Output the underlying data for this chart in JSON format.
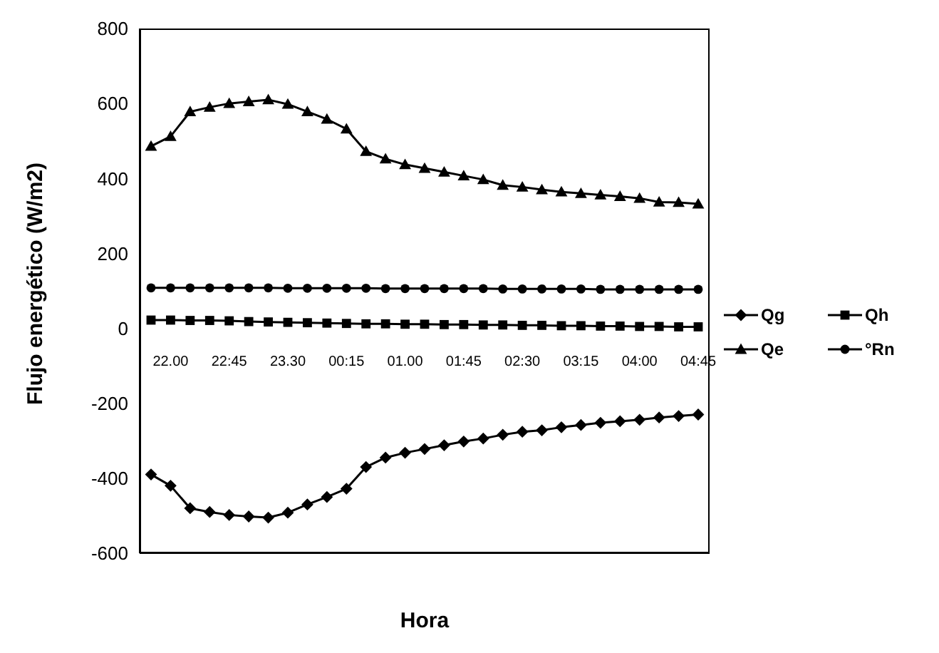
{
  "chart_data": {
    "type": "line",
    "xlabel": "Hora",
    "ylabel": "Flujo energético (W/m2)",
    "categories": [
      null,
      "22.00",
      null,
      null,
      "22:45",
      null,
      null,
      "23.30",
      null,
      null,
      "00:15",
      null,
      null,
      "01.00",
      null,
      null,
      "01:45",
      null,
      null,
      "02:30",
      null,
      null,
      "03:15",
      null,
      null,
      "04:00",
      null,
      null,
      "04:45"
    ],
    "series": [
      {
        "name": "Qg",
        "color": "#000000",
        "marker": "diamond",
        "values": [
          -390,
          -420,
          -480,
          -490,
          -498,
          -502,
          -505,
          -492,
          -470,
          -450,
          -428,
          -370,
          -345,
          -332,
          -322,
          -312,
          -302,
          -294,
          -284,
          -276,
          -272,
          -264,
          -258,
          -252,
          -248,
          -244,
          -238,
          -234,
          -230
        ]
      },
      {
        "name": "Qh",
        "color": "#000000",
        "marker": "square",
        "values": [
          22,
          22,
          21,
          21,
          20,
          18,
          17,
          16,
          15,
          14,
          13,
          12,
          12,
          11,
          11,
          10,
          10,
          9,
          9,
          8,
          8,
          7,
          7,
          6,
          6,
          5,
          5,
          4,
          4
        ]
      },
      {
        "name": "Qe",
        "color": "#000000",
        "marker": "triangle",
        "values": [
          486,
          512,
          578,
          590,
          600,
          605,
          610,
          598,
          578,
          558,
          532,
          472,
          452,
          437,
          427,
          417,
          407,
          397,
          382,
          377,
          370,
          364,
          360,
          356,
          352,
          347,
          337,
          336,
          332
        ]
      },
      {
        "name": "°Rn",
        "color": "#000000",
        "marker": "circle",
        "values": [
          108,
          108,
          108,
          108,
          108,
          108,
          108,
          107,
          107,
          107,
          107,
          107,
          106,
          106,
          106,
          106,
          106,
          106,
          105,
          105,
          105,
          105,
          105,
          104,
          104,
          104,
          104,
          104,
          104
        ]
      }
    ],
    "ylim": [
      -600,
      800
    ],
    "yticks": [
      -600,
      -400,
      -200,
      0,
      200,
      400,
      600,
      800
    ],
    "grid": false,
    "legend": "right"
  }
}
